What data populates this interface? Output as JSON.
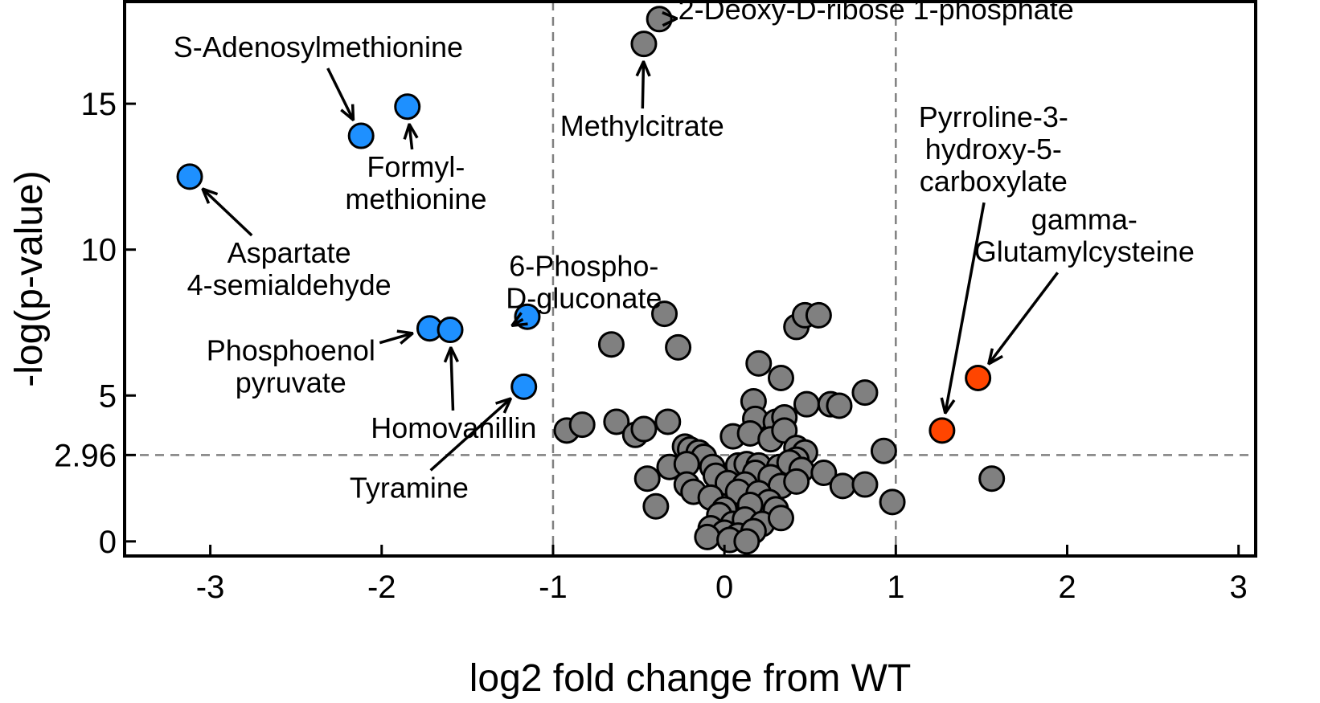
{
  "chart_data": {
    "type": "scatter",
    "title": "",
    "xlabel": "log2 fold change from WT",
    "ylabel": "-log(p-value)",
    "xlim": [
      -3.5,
      3.1
    ],
    "ylim": [
      -0.5,
      18.5
    ],
    "xticks": [
      -3,
      -2,
      -1,
      0,
      1,
      2,
      3
    ],
    "yticks": [
      0,
      2.96,
      5,
      10,
      15
    ],
    "ytick_labels": [
      "0",
      "2.96",
      "5",
      "10",
      "15"
    ],
    "thresholds": {
      "x": [
        -1,
        1
      ],
      "y": 2.96
    },
    "grid": false,
    "colors": {
      "blue": "#1e90ff",
      "gray": "#808080",
      "orange": "#ff4500",
      "threshold": "#808080"
    },
    "series": [
      {
        "color": "#1e90ff",
        "points": [
          {
            "x": -3.12,
            "y": 12.5
          },
          {
            "x": -2.12,
            "y": 13.9
          },
          {
            "x": -1.85,
            "y": 14.9
          },
          {
            "x": -1.72,
            "y": 7.3
          },
          {
            "x": -1.6,
            "y": 7.25
          },
          {
            "x": -1.15,
            "y": 7.7
          },
          {
            "x": -1.17,
            "y": 5.3
          }
        ]
      },
      {
        "color": "#ff4500",
        "points": [
          {
            "x": 1.27,
            "y": 3.8
          },
          {
            "x": 1.48,
            "y": 5.6
          }
        ]
      },
      {
        "color": "#808080",
        "points": [
          {
            "x": -0.38,
            "y": 17.9
          },
          {
            "x": -0.47,
            "y": 17.05
          },
          {
            "x": -0.35,
            "y": 7.8
          },
          {
            "x": -0.27,
            "y": 6.65
          },
          {
            "x": -0.66,
            "y": 6.75
          },
          {
            "x": 0.2,
            "y": 6.1
          },
          {
            "x": 0.42,
            "y": 7.35
          },
          {
            "x": 0.47,
            "y": 7.75
          },
          {
            "x": 0.55,
            "y": 7.75
          },
          {
            "x": 0.33,
            "y": 5.6
          },
          {
            "x": 0.82,
            "y": 5.1
          },
          {
            "x": 0.48,
            "y": 4.7
          },
          {
            "x": 0.62,
            "y": 4.7
          },
          {
            "x": 0.67,
            "y": 4.65
          },
          {
            "x": -0.92,
            "y": 3.8
          },
          {
            "x": -0.83,
            "y": 4.0
          },
          {
            "x": -0.63,
            "y": 4.1
          },
          {
            "x": -0.52,
            "y": 3.65
          },
          {
            "x": -0.47,
            "y": 3.85
          },
          {
            "x": -0.33,
            "y": 4.1
          },
          {
            "x": 0.17,
            "y": 4.8
          },
          {
            "x": 0.18,
            "y": 4.2
          },
          {
            "x": 0.3,
            "y": 4.1
          },
          {
            "x": 0.35,
            "y": 4.25
          },
          {
            "x": 0.05,
            "y": 3.6
          },
          {
            "x": 0.15,
            "y": 3.7
          },
          {
            "x": 0.27,
            "y": 3.5
          },
          {
            "x": 0.35,
            "y": 3.8
          },
          {
            "x": -0.23,
            "y": 3.25
          },
          {
            "x": -0.2,
            "y": 3.15
          },
          {
            "x": -0.15,
            "y": 3.05
          },
          {
            "x": -0.12,
            "y": 2.9
          },
          {
            "x": 0.42,
            "y": 3.2
          },
          {
            "x": 0.47,
            "y": 3.05
          },
          {
            "x": 0.42,
            "y": 2.8
          },
          {
            "x": 0.93,
            "y": 3.1
          },
          {
            "x": -0.32,
            "y": 2.55
          },
          {
            "x": -0.22,
            "y": 2.65
          },
          {
            "x": -0.07,
            "y": 2.55
          },
          {
            "x": 0.08,
            "y": 2.6
          },
          {
            "x": 0.13,
            "y": 2.65
          },
          {
            "x": 0.2,
            "y": 2.6
          },
          {
            "x": 0.18,
            "y": 2.35
          },
          {
            "x": 0.32,
            "y": 2.55
          },
          {
            "x": 0.38,
            "y": 2.7
          },
          {
            "x": 0.45,
            "y": 2.45
          },
          {
            "x": 0.58,
            "y": 2.35
          },
          {
            "x": -0.45,
            "y": 2.15
          },
          {
            "x": -0.22,
            "y": 1.95
          },
          {
            "x": -0.18,
            "y": 1.7
          },
          {
            "x": -0.05,
            "y": 2.25
          },
          {
            "x": 0.02,
            "y": 2.0
          },
          {
            "x": 0.12,
            "y": 1.95
          },
          {
            "x": 0.27,
            "y": 2.2
          },
          {
            "x": 0.33,
            "y": 1.9
          },
          {
            "x": 0.42,
            "y": 2.05
          },
          {
            "x": 0.69,
            "y": 1.9
          },
          {
            "x": 0.82,
            "y": 1.95
          },
          {
            "x": 0.98,
            "y": 1.35
          },
          {
            "x": 1.56,
            "y": 2.15
          },
          {
            "x": -0.4,
            "y": 1.2
          },
          {
            "x": -0.08,
            "y": 1.5
          },
          {
            "x": 0.08,
            "y": 1.7
          },
          {
            "x": 0.2,
            "y": 1.65
          },
          {
            "x": 0.26,
            "y": 1.35
          },
          {
            "x": 0.15,
            "y": 1.25
          },
          {
            "x": 0.3,
            "y": 1.1
          },
          {
            "x": 0.0,
            "y": 1.1
          },
          {
            "x": -0.03,
            "y": 0.9
          },
          {
            "x": 0.05,
            "y": 0.6
          },
          {
            "x": 0.12,
            "y": 0.75
          },
          {
            "x": 0.22,
            "y": 0.6
          },
          {
            "x": 0.33,
            "y": 0.8
          },
          {
            "x": -0.08,
            "y": 0.45
          },
          {
            "x": 0.0,
            "y": 0.3
          },
          {
            "x": 0.08,
            "y": 0.2
          },
          {
            "x": 0.17,
            "y": 0.35
          },
          {
            "x": -0.1,
            "y": 0.15
          },
          {
            "x": 0.03,
            "y": 0.05
          },
          {
            "x": 0.13,
            "y": 0.0
          }
        ]
      }
    ],
    "annotations": [
      {
        "lines": [
          "2-Deoxy-D-ribose 1-phosphate"
        ],
        "text_at": [
          -0.27,
          17.9
        ],
        "anchor": "start",
        "point": [
          -0.38,
          17.9
        ]
      },
      {
        "lines": [
          "S-Adenosylmethionine"
        ],
        "text_at": [
          -2.37,
          16.6
        ],
        "anchor": "middle",
        "point": [
          -2.12,
          13.9
        ]
      },
      {
        "lines": [
          "Formyl-",
          "methionine"
        ],
        "text_at": [
          -1.8,
          12.5
        ],
        "anchor": "middle",
        "point": [
          -1.85,
          14.9
        ]
      },
      {
        "lines": [
          "Methylcitrate"
        ],
        "text_at": [
          -0.48,
          13.9
        ],
        "anchor": "middle",
        "point": [
          -0.47,
          17.05
        ]
      },
      {
        "lines": [
          "Aspartate",
          "4-semialdehyde"
        ],
        "text_at": [
          -2.54,
          9.55
        ],
        "anchor": "middle",
        "point": [
          -3.12,
          12.5
        ]
      },
      {
        "lines": [
          "6-Phospho-",
          "D-gluconate"
        ],
        "text_at": [
          -0.82,
          9.1
        ],
        "anchor": "middle",
        "point": [
          -1.15,
          7.7
        ]
      },
      {
        "lines": [
          "Phosphoenol",
          "pyruvate"
        ],
        "text_at": [
          -2.53,
          6.2
        ],
        "anchor": "middle",
        "point": [
          -1.72,
          7.3
        ]
      },
      {
        "lines": [
          "Homovanillin"
        ],
        "text_at": [
          -1.58,
          3.55
        ],
        "anchor": "middle",
        "point": [
          -1.6,
          7.25
        ]
      },
      {
        "lines": [
          "Tyramine"
        ],
        "text_at": [
          -1.84,
          1.5
        ],
        "anchor": "middle",
        "point": [
          -1.17,
          5.3
        ]
      },
      {
        "lines": [
          "Pyrroline-3-",
          "hydroxy-5-",
          "carboxylate"
        ],
        "text_at": [
          1.57,
          14.2
        ],
        "anchor": "middle",
        "point": [
          1.27,
          3.8
        ]
      },
      {
        "lines": [
          "gamma-",
          "Glutamylcysteine"
        ],
        "text_at": [
          2.1,
          10.7
        ],
        "anchor": "middle",
        "point": [
          1.48,
          5.6
        ]
      }
    ]
  }
}
